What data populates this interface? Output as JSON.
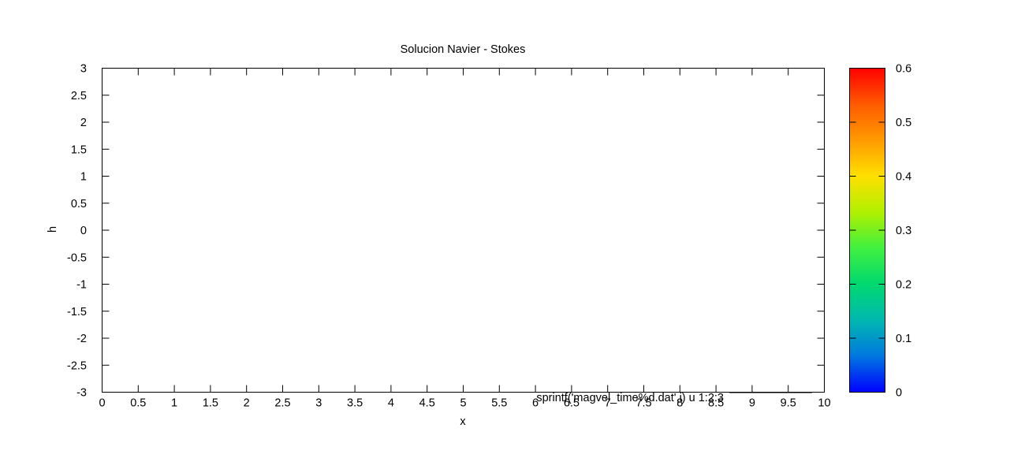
{
  "chart_data": {
    "type": "heatmap",
    "title": "Solucion Navier - Stokes",
    "xlabel": "x",
    "ylabel": "h",
    "xlim": [
      0,
      10
    ],
    "ylim": [
      -3,
      3
    ],
    "x_ticks": [
      "0",
      "0.5",
      "1",
      "1.5",
      "2",
      "2.5",
      "3",
      "3.5",
      "4",
      "4.5",
      "5",
      "5.5",
      "6",
      "6.5",
      "7",
      "7.5",
      "8",
      "8.5",
      "9",
      "9.5",
      "10"
    ],
    "y_ticks": [
      "-3",
      "-2.5",
      "-2",
      "-1.5",
      "-1",
      "-0.5",
      "0",
      "0.5",
      "1",
      "1.5",
      "2",
      "2.5",
      "3"
    ],
    "colorbar": {
      "range": [
        0,
        0.6
      ],
      "ticks": [
        "0",
        "0.1",
        "0.2",
        "0.3",
        "0.4",
        "0.5",
        "0.6"
      ],
      "palette": [
        "#0000ff",
        "#0077e0",
        "#00b8b0",
        "#00d870",
        "#40f040",
        "#b0f000",
        "#ffe000",
        "#ff9a00",
        "#ff5a00",
        "#ff0000"
      ]
    },
    "legend": {
      "placement": "bottom-right",
      "label": "sprintf('magvel_time%d.dat',i) u 1:2:3"
    },
    "data": [],
    "grid": false
  }
}
